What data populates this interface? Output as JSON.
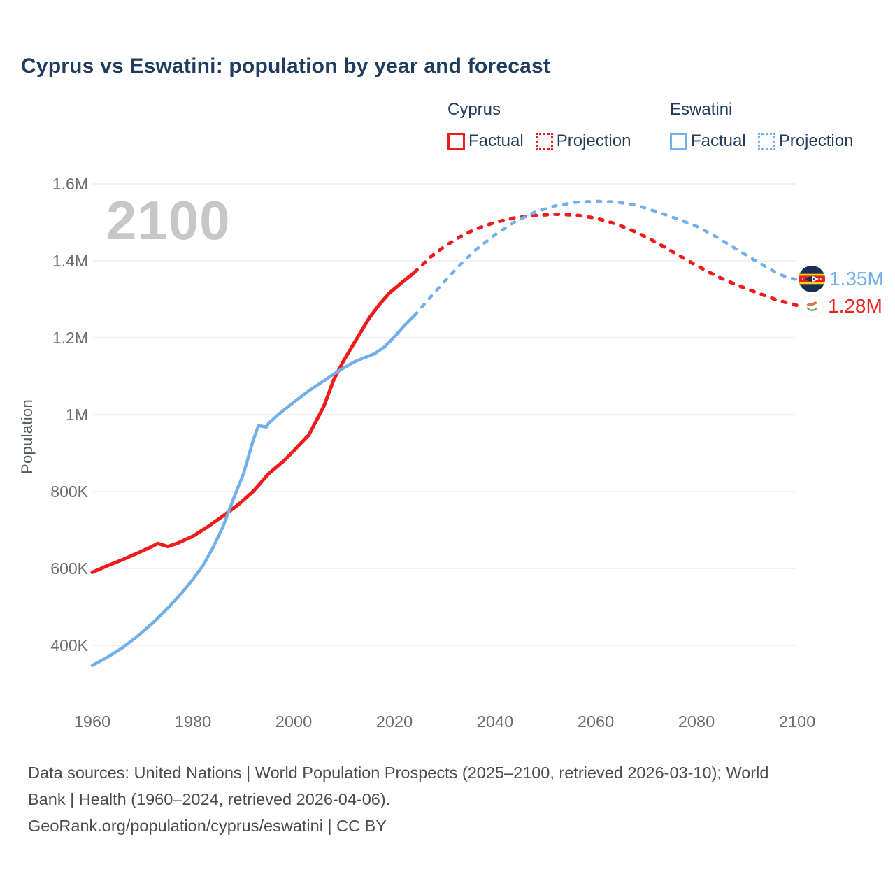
{
  "title": "Cyprus vs Eswatini: population by year and forecast",
  "watermark": "2100",
  "ylabel": "Population",
  "legend": {
    "cyprus": {
      "name": "Cyprus",
      "factual": "Factual",
      "projection": "Projection"
    },
    "eswatini": {
      "name": "Eswatini",
      "factual": "Factual",
      "projection": "Projection"
    }
  },
  "end_labels": {
    "eswatini": {
      "value": "1.35M"
    },
    "cyprus": {
      "value": "1.28M"
    }
  },
  "footer": {
    "sources_line1": "Data sources: United Nations | World Population Prospects (2025–2100, retrieved 2026-03-10); World",
    "sources_line2": "Bank | Health (1960–2024, retrieved 2026-04-06).",
    "attribution": "GeoRank.org/population/cyprus/eswatini | CC BY"
  },
  "colors": {
    "cyprus_red": "#ee1c1c",
    "eswatini_blue": "#73b0e9",
    "title_navy": "#203d60",
    "axis_gray": "#6d6d6d",
    "gridline": "#ececec",
    "watermark_gray": "#c7c7c7",
    "footer_gray": "#4c4c4c"
  },
  "chart_data": {
    "type": "line",
    "title": "Cyprus vs Eswatini: population by year and forecast",
    "xlabel": "",
    "ylabel": "Population",
    "x_domain": [
      1960,
      2100
    ],
    "y_domain": [
      400000,
      1600000
    ],
    "x_ticks": [
      1960,
      1980,
      2000,
      2020,
      2040,
      2060,
      2080,
      2100
    ],
    "y_ticks": [
      {
        "value": 400000,
        "label": "400K"
      },
      {
        "value": 600000,
        "label": "600K"
      },
      {
        "value": 800000,
        "label": "800K"
      },
      {
        "value": 1000000,
        "label": "1M"
      },
      {
        "value": 1200000,
        "label": "1.2M"
      },
      {
        "value": 1400000,
        "label": "1.4M"
      },
      {
        "value": 1600000,
        "label": "1.6M"
      }
    ],
    "grid": "horizontal-only",
    "legend_position": "top-right",
    "series": [
      {
        "name": "Cyprus Factual",
        "color": "#ee1c1c",
        "style": "solid",
        "width": 5,
        "points": [
          [
            1960,
            590000
          ],
          [
            1963,
            607000
          ],
          [
            1966,
            623000
          ],
          [
            1969,
            640000
          ],
          [
            1972,
            658000
          ],
          [
            1973,
            665000
          ],
          [
            1975,
            657000
          ],
          [
            1977,
            666000
          ],
          [
            1980,
            684000
          ],
          [
            1983,
            709000
          ],
          [
            1986,
            737000
          ],
          [
            1989,
            766000
          ],
          [
            1992,
            801000
          ],
          [
            1995,
            846000
          ],
          [
            1998,
            879000
          ],
          [
            2000,
            906000
          ],
          [
            2003,
            947000
          ],
          [
            2006,
            1022000
          ],
          [
            2008,
            1092000
          ],
          [
            2010,
            1142000
          ],
          [
            2012,
            1186000
          ],
          [
            2015,
            1251000
          ],
          [
            2017,
            1286000
          ],
          [
            2019,
            1316000
          ],
          [
            2021,
            1338000
          ],
          [
            2024,
            1370000
          ]
        ]
      },
      {
        "name": "Cyprus Projection",
        "color": "#ee1c1c",
        "style": "dotted",
        "width": 5,
        "points": [
          [
            2024,
            1370000
          ],
          [
            2027,
            1408000
          ],
          [
            2030,
            1438000
          ],
          [
            2033,
            1462000
          ],
          [
            2036,
            1482000
          ],
          [
            2040,
            1500000
          ],
          [
            2044,
            1512000
          ],
          [
            2048,
            1518000
          ],
          [
            2052,
            1521000
          ],
          [
            2056,
            1519000
          ],
          [
            2060,
            1511000
          ],
          [
            2064,
            1496000
          ],
          [
            2068,
            1475000
          ],
          [
            2072,
            1448000
          ],
          [
            2076,
            1418000
          ],
          [
            2080,
            1388000
          ],
          [
            2084,
            1360000
          ],
          [
            2088,
            1337000
          ],
          [
            2092,
            1317000
          ],
          [
            2096,
            1298000
          ],
          [
            2100,
            1284000
          ]
        ]
      },
      {
        "name": "Eswatini Factual",
        "color": "#73b0e9",
        "style": "solid",
        "width": 4.5,
        "points": [
          [
            1960,
            348000
          ],
          [
            1963,
            369000
          ],
          [
            1966,
            394000
          ],
          [
            1969,
            424000
          ],
          [
            1972,
            458000
          ],
          [
            1975,
            497000
          ],
          [
            1978,
            540000
          ],
          [
            1980,
            572000
          ],
          [
            1982,
            608000
          ],
          [
            1984,
            655000
          ],
          [
            1986,
            710000
          ],
          [
            1988,
            780000
          ],
          [
            1990,
            845000
          ],
          [
            1991,
            890000
          ],
          [
            1992,
            935000
          ],
          [
            1993,
            971000
          ],
          [
            1994.6,
            968000
          ],
          [
            1995,
            977000
          ],
          [
            1997,
            1001000
          ],
          [
            2000,
            1032000
          ],
          [
            2003,
            1062000
          ],
          [
            2006,
            1088000
          ],
          [
            2008,
            1106000
          ],
          [
            2010,
            1122000
          ],
          [
            2012,
            1137000
          ],
          [
            2014,
            1148000
          ],
          [
            2016,
            1158000
          ],
          [
            2018,
            1176000
          ],
          [
            2020,
            1202000
          ],
          [
            2022,
            1232000
          ],
          [
            2024,
            1258000
          ]
        ]
      },
      {
        "name": "Eswatini Projection",
        "color": "#73b0e9",
        "style": "dotted",
        "width": 4.5,
        "points": [
          [
            2024,
            1258000
          ],
          [
            2027,
            1303000
          ],
          [
            2030,
            1347000
          ],
          [
            2033,
            1389000
          ],
          [
            2036,
            1427000
          ],
          [
            2040,
            1468000
          ],
          [
            2044,
            1502000
          ],
          [
            2048,
            1527000
          ],
          [
            2052,
            1543000
          ],
          [
            2056,
            1552000
          ],
          [
            2060,
            1555000
          ],
          [
            2064,
            1553000
          ],
          [
            2068,
            1545000
          ],
          [
            2072,
            1528000
          ],
          [
            2076,
            1510000
          ],
          [
            2080,
            1490000
          ],
          [
            2084,
            1462000
          ],
          [
            2088,
            1430000
          ],
          [
            2092,
            1398000
          ],
          [
            2096,
            1368000
          ],
          [
            2098,
            1357000
          ],
          [
            2100,
            1351000
          ]
        ]
      }
    ],
    "end_annotations": [
      {
        "series": "Eswatini",
        "year": 2100,
        "value": 1350000,
        "label": "1.35M"
      },
      {
        "series": "Cyprus",
        "year": 2100,
        "value": 1280000,
        "label": "1.28M"
      }
    ]
  }
}
